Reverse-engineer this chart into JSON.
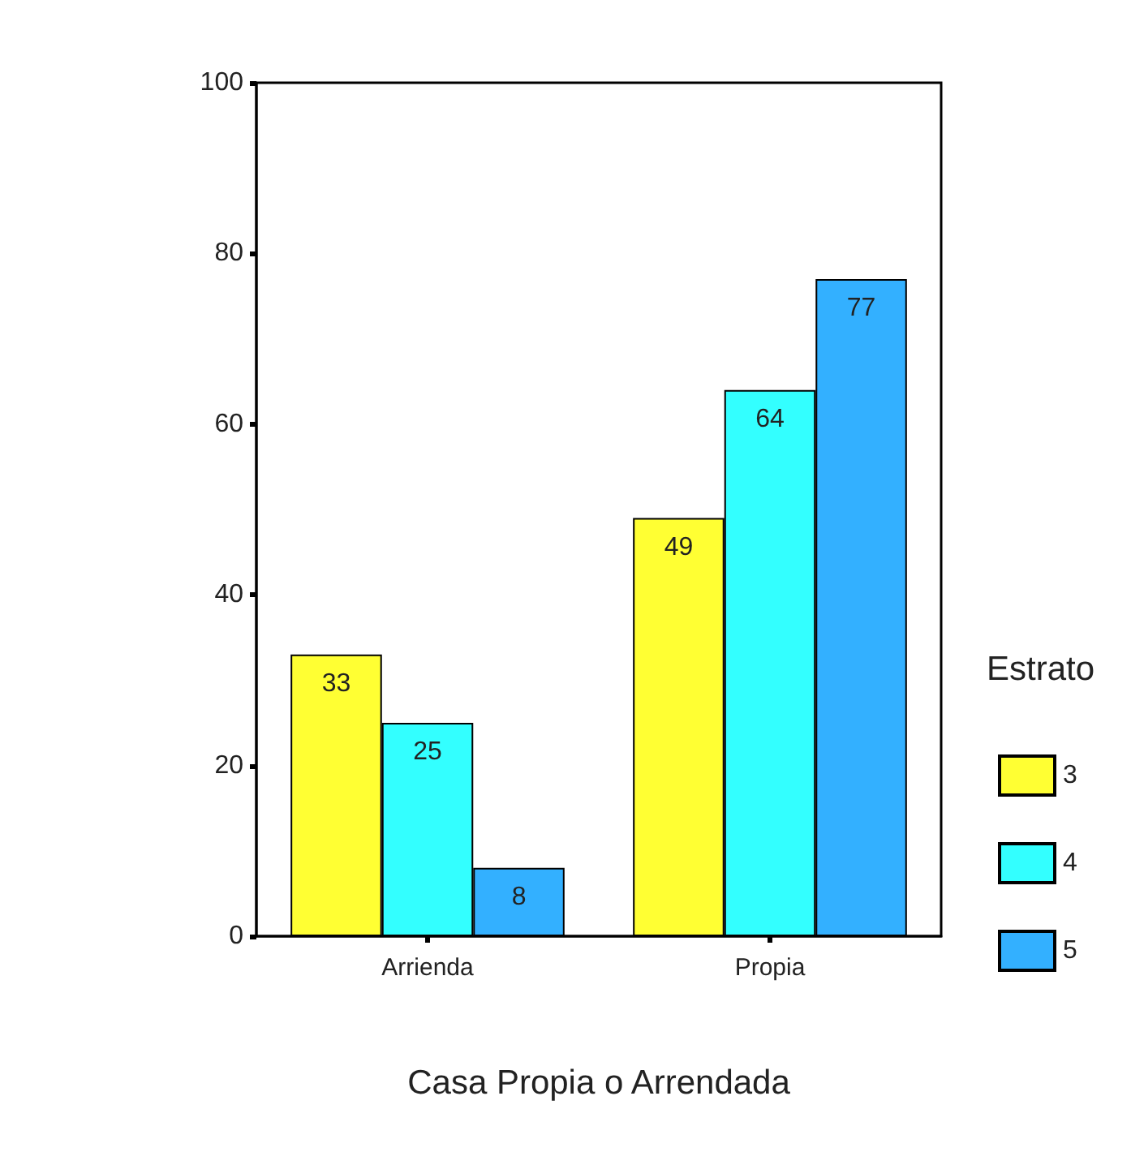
{
  "chart_data": {
    "type": "bar",
    "xlabel": "Casa Propia o Arrendada",
    "legend_title": "Estrato",
    "categories": [
      "Arrienda",
      "Propia"
    ],
    "series": [
      {
        "name": "3",
        "color": "#ffff33",
        "values": [
          33,
          49
        ]
      },
      {
        "name": "4",
        "color": "#33ffff",
        "values": [
          25,
          64
        ]
      },
      {
        "name": "5",
        "color": "#33b0ff",
        "values": [
          8,
          77
        ]
      }
    ],
    "ylim": [
      0,
      100
    ],
    "yticks": [
      0,
      20,
      40,
      60,
      80,
      100
    ],
    "data_labels": true,
    "legend": "right",
    "grid": false
  }
}
